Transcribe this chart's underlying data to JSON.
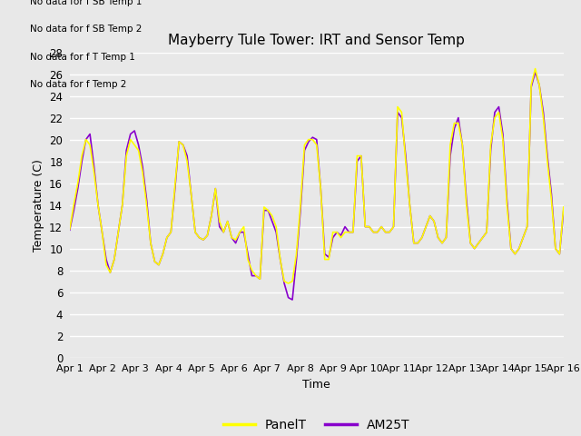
{
  "title": "Mayberry Tule Tower: IRT and Sensor Temp",
  "xlabel": "Time",
  "ylabel": "Temperature (C)",
  "ylim": [
    0,
    28
  ],
  "yticks": [
    0,
    2,
    4,
    6,
    8,
    10,
    12,
    14,
    16,
    18,
    20,
    22,
    24,
    26,
    28
  ],
  "xtick_labels": [
    "Apr 1",
    "Apr 2",
    "Apr 3",
    "Apr 4",
    "Apr 5",
    "Apr 6",
    "Apr 7",
    "Apr 8",
    "Apr 9",
    "Apr 10",
    "Apr 11",
    "Apr 12",
    "Apr 13",
    "Apr 14",
    "Apr 15",
    "Apr 16"
  ],
  "panel_color": "#ffff00",
  "am25t_color": "#8800cc",
  "line_width": 1.2,
  "legend_labels": [
    "PanelT",
    "AM25T"
  ],
  "no_data_texts": [
    "No data for f SB Temp 1",
    "No data for f SB Temp 2",
    "No data for f T Temp 1",
    "No data for f Temp 2"
  ],
  "fig_bg_color": "#e8e8e8",
  "plot_bg_color": "#e8e8e8",
  "grid_color": "#ffffff",
  "panel_t": [
    11.8,
    14.0,
    16.0,
    18.5,
    20.0,
    19.5,
    17.0,
    14.0,
    11.5,
    8.5,
    7.8,
    9.0,
    11.5,
    14.0,
    18.5,
    20.0,
    19.5,
    19.0,
    17.0,
    14.0,
    10.5,
    8.8,
    8.5,
    9.5,
    11.0,
    11.5,
    15.8,
    19.8,
    19.5,
    18.0,
    15.0,
    11.5,
    11.0,
    10.8,
    11.2,
    13.0,
    15.5,
    12.5,
    11.5,
    12.5,
    11.0,
    10.8,
    11.5,
    12.0,
    9.0,
    8.0,
    7.5,
    7.2,
    13.8,
    13.5,
    13.0,
    12.0,
    9.0,
    7.0,
    6.8,
    7.0,
    9.5,
    14.0,
    19.5,
    20.0,
    20.0,
    19.5,
    15.5,
    9.0,
    9.0,
    11.5,
    11.5,
    11.0,
    11.5,
    11.5,
    11.5,
    18.5,
    18.5,
    12.0,
    12.0,
    11.5,
    11.5,
    12.0,
    11.5,
    11.5,
    12.0,
    23.0,
    22.5,
    18.0,
    14.0,
    10.5,
    10.5,
    11.0,
    12.0,
    13.0,
    12.5,
    11.0,
    10.5,
    11.0,
    19.5,
    21.5,
    21.5,
    19.5,
    14.0,
    10.5,
    10.0,
    10.5,
    11.0,
    11.5,
    19.5,
    22.0,
    22.5,
    20.0,
    14.0,
    10.0,
    9.5,
    10.0,
    11.0,
    12.0,
    25.0,
    26.5,
    25.0,
    22.0,
    18.0,
    14.5,
    10.0,
    9.5,
    13.8
  ],
  "am25t": [
    11.7,
    13.5,
    15.5,
    18.0,
    20.0,
    20.5,
    17.5,
    14.0,
    11.5,
    9.0,
    7.8,
    9.0,
    11.5,
    14.0,
    19.0,
    20.5,
    20.8,
    19.5,
    17.5,
    14.5,
    10.5,
    8.8,
    8.5,
    9.5,
    11.0,
    11.5,
    15.5,
    19.8,
    19.5,
    18.5,
    15.0,
    11.5,
    11.0,
    10.8,
    11.2,
    13.0,
    15.5,
    12.0,
    11.5,
    12.5,
    11.0,
    10.5,
    11.5,
    11.5,
    9.5,
    7.5,
    7.5,
    7.2,
    13.5,
    13.5,
    12.5,
    11.5,
    9.0,
    6.8,
    5.5,
    5.3,
    9.0,
    13.5,
    19.0,
    19.8,
    20.2,
    20.0,
    15.5,
    9.5,
    9.2,
    11.0,
    11.5,
    11.2,
    12.0,
    11.5,
    11.5,
    18.0,
    18.5,
    12.0,
    12.0,
    11.5,
    11.5,
    12.0,
    11.5,
    11.5,
    12.0,
    22.5,
    22.0,
    18.5,
    14.0,
    10.5,
    10.5,
    11.0,
    12.0,
    13.0,
    12.5,
    11.0,
    10.5,
    11.0,
    18.5,
    21.0,
    22.0,
    19.5,
    14.5,
    10.5,
    10.0,
    10.5,
    11.0,
    11.5,
    19.0,
    22.5,
    23.0,
    20.5,
    14.5,
    10.0,
    9.5,
    10.0,
    11.0,
    12.0,
    24.8,
    26.2,
    25.0,
    22.5,
    18.5,
    15.0,
    10.0,
    9.5,
    13.5
  ]
}
